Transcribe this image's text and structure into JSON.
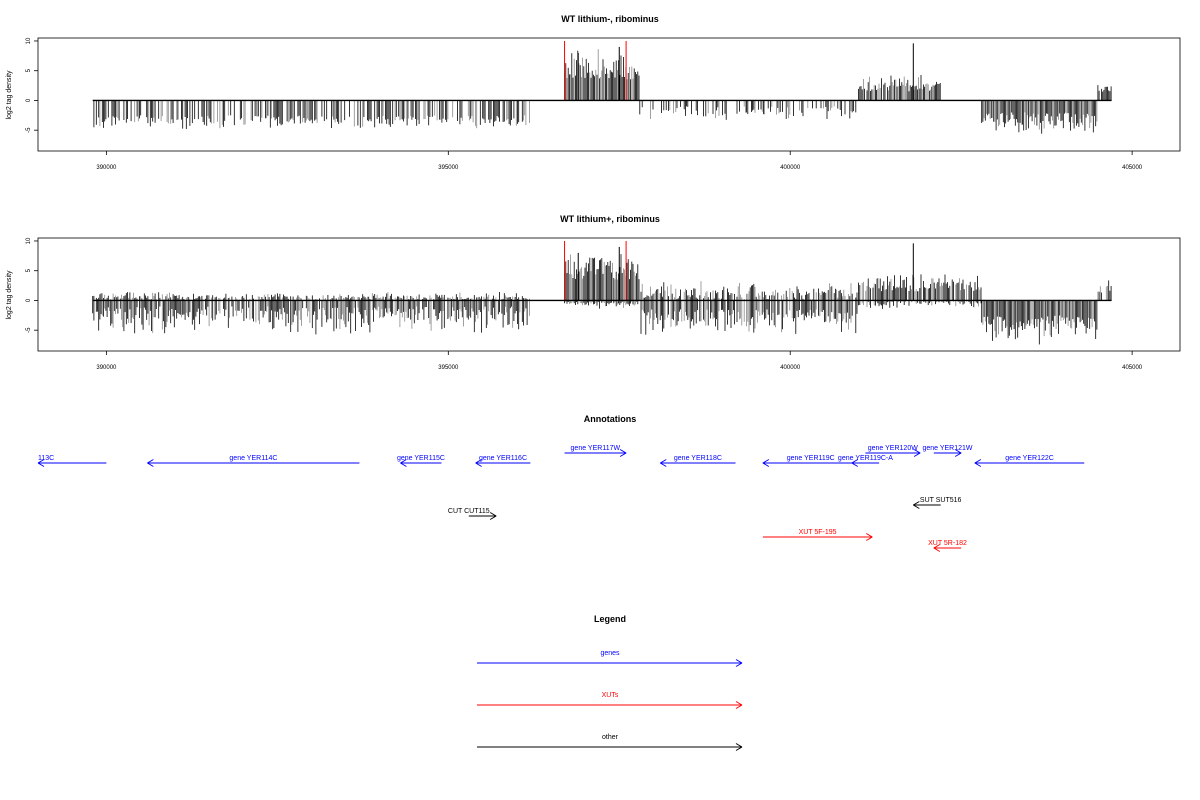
{
  "colors": {
    "gene": "#0000ff",
    "xut": "#ff0000",
    "other": "#000000",
    "bar": "#000000",
    "bar_alt": "#888888",
    "marker": "#ff0000"
  },
  "chart_data": [
    {
      "type": "bar",
      "title": "WT lithium-, ribominus",
      "ylabel": "log2 tag density",
      "xlim": [
        389000,
        405700
      ],
      "ylim": [
        -8.5,
        10.5
      ],
      "xticks": [
        "390000",
        "395000",
        "400000",
        "405000"
      ],
      "yticks": [
        "10",
        "5",
        "0",
        "-5"
      ],
      "markers": [
        396700,
        397600
      ],
      "segments": [
        {
          "x0": 389800,
          "x1": 396200,
          "lo": 0,
          "hi": 0,
          "nlo": 2.5,
          "nhi": 5.0,
          "density": 0.6
        },
        {
          "x0": 396700,
          "x1": 397800,
          "lo": 3.5,
          "hi": 9.0,
          "nlo": 0,
          "nhi": 0,
          "density": 1.0
        },
        {
          "x0": 397800,
          "x1": 401000,
          "lo": 0,
          "hi": 0,
          "nlo": 1.0,
          "nhi": 3.5,
          "density": 0.4
        },
        {
          "x0": 401000,
          "x1": 402200,
          "lo": 1.5,
          "hi": 4.5,
          "nlo": 0,
          "nhi": 0,
          "density": 0.9
        },
        {
          "x0": 402800,
          "x1": 404500,
          "lo": 0,
          "hi": 0,
          "nlo": 2.0,
          "nhi": 6.0,
          "density": 1.0
        },
        {
          "x0": 404500,
          "x1": 404700,
          "lo": 1.0,
          "hi": 3.5,
          "nlo": 0,
          "nhi": 0,
          "density": 0.9
        }
      ]
    },
    {
      "type": "bar",
      "title": "WT lithium+, ribominus",
      "ylabel": "log2 tag density",
      "xlim": [
        389000,
        405700
      ],
      "ylim": [
        -8.5,
        10.5
      ],
      "xticks": [
        "390000",
        "395000",
        "400000",
        "405000"
      ],
      "yticks": [
        "10",
        "5",
        "0",
        "-5"
      ],
      "markers": [
        396700,
        397600
      ],
      "segments": [
        {
          "x0": 389800,
          "x1": 396200,
          "lo": 0,
          "hi": 1.5,
          "nlo": 1.0,
          "nhi": 6.0,
          "density": 0.9
        },
        {
          "x0": 396700,
          "x1": 397800,
          "lo": 3.5,
          "hi": 9.0,
          "nlo": 0,
          "nhi": 1.5,
          "density": 1.0
        },
        {
          "x0": 397800,
          "x1": 401000,
          "lo": 0,
          "hi": 3.5,
          "nlo": 1.5,
          "nhi": 6.0,
          "density": 0.9
        },
        {
          "x0": 401000,
          "x1": 402800,
          "lo": 1.5,
          "hi": 5.0,
          "nlo": 0,
          "nhi": 1.5,
          "density": 0.9
        },
        {
          "x0": 402800,
          "x1": 404500,
          "lo": 0,
          "hi": 0,
          "nlo": 2.5,
          "nhi": 7.5,
          "density": 1.0
        },
        {
          "x0": 404500,
          "x1": 404700,
          "lo": 1.0,
          "hi": 5.0,
          "nlo": 0,
          "nhi": 0,
          "density": 0.9
        }
      ]
    }
  ],
  "annotations": {
    "title": "Annotations",
    "items": [
      {
        "label": "113C",
        "start": 389000,
        "end": 390000,
        "strand": "-",
        "kind": "gene",
        "row": 0
      },
      {
        "label": "gene YER114C",
        "start": 390600,
        "end": 393700,
        "strand": "-",
        "kind": "gene",
        "row": 0
      },
      {
        "label": "gene YER115C",
        "start": 394300,
        "end": 394900,
        "strand": "-",
        "kind": "gene",
        "row": 0
      },
      {
        "label": "gene YER116C",
        "start": 395400,
        "end": 396200,
        "strand": "-",
        "kind": "gene",
        "row": 0
      },
      {
        "label": "gene YER117W",
        "start": 396700,
        "end": 397600,
        "strand": "+",
        "kind": "gene",
        "row": 1
      },
      {
        "label": "gene YER118C",
        "start": 398100,
        "end": 399200,
        "strand": "-",
        "kind": "gene",
        "row": 0
      },
      {
        "label": "gene YER119C",
        "start": 399600,
        "end": 401000,
        "strand": "-",
        "kind": "gene",
        "row": 0
      },
      {
        "label": "gene YER119C-A",
        "start": 400900,
        "end": 401300,
        "strand": "-",
        "kind": "gene",
        "row": 0
      },
      {
        "label": "gene YER120W",
        "start": 401100,
        "end": 401900,
        "strand": "+",
        "kind": "gene",
        "row": 1
      },
      {
        "label": "gene YER121W",
        "start": 402100,
        "end": 402500,
        "strand": "+",
        "kind": "gene",
        "row": 1
      },
      {
        "label": "gene YER122C",
        "start": 402700,
        "end": 404300,
        "strand": "-",
        "kind": "gene",
        "row": 0
      },
      {
        "label": "CUT CUT115",
        "start": 395300,
        "end": 395700,
        "strand": "+",
        "kind": "other",
        "row": 2
      },
      {
        "label": "SUT SUT516",
        "start": 401800,
        "end": 402200,
        "strand": "-",
        "kind": "other",
        "row": 3
      },
      {
        "label": "XUT 5F-195",
        "start": 399600,
        "end": 401200,
        "strand": "+",
        "kind": "xut",
        "row": 4
      },
      {
        "label": "XUT 5R-182",
        "start": 402100,
        "end": 402500,
        "strand": "-",
        "kind": "xut",
        "row": 5
      }
    ]
  },
  "legend": {
    "title": "Legend",
    "items": [
      {
        "label": "genes",
        "kind": "gene"
      },
      {
        "label": "XUTs",
        "kind": "xut"
      },
      {
        "label": "other",
        "kind": "other"
      }
    ]
  }
}
